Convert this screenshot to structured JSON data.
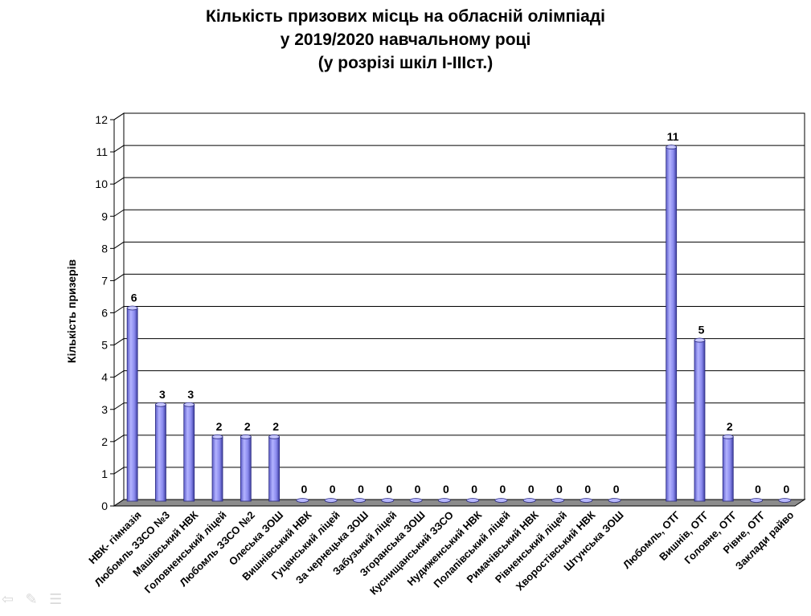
{
  "title_lines": [
    "Кількість призових місць на обласній олімпіаді",
    "у 2019/2020  навчальному році",
    "(у розрізі шкіл І-ІІІст.)"
  ],
  "colors": {
    "bar_front": "#9999ff",
    "bar_dark": "#2b2b80",
    "floor": "#8c8c8c",
    "gridline": "#000000"
  },
  "chart_data": {
    "type": "bar",
    "title": "Кількість призових місць на обласній олімпіаді у 2019/2020  навчальному році (у розрізі шкіл І-ІІІст.)",
    "xlabel": "",
    "ylabel": "Кількість призерів",
    "ylim": [
      0,
      12
    ],
    "yticks": [
      0,
      1,
      2,
      3,
      4,
      5,
      6,
      7,
      8,
      9,
      10,
      11,
      12
    ],
    "grid": true,
    "three_d": true,
    "categories": [
      "НВК- гімназія",
      "Любомль ЗЗСО №3",
      "Машівський НВК",
      "Головненський ліцей",
      "Любомль ЗЗСО №2",
      "Олеська ЗОШ",
      "Вишнівський  НВК",
      "Гуцанський ліцей",
      "За чернецька ЗОШ",
      "Забузький ліцей",
      "Згоранська ЗОШ",
      "Куснищанський ЗЗСО",
      "Нудиженський  НВК",
      "Полапівський ліцей",
      "Римачівський НВК",
      "Рівненський ліцей",
      "Хворостівський НВК",
      "Штунська ЗОШ",
      "",
      "Любомль, ОТГ",
      "Вишнів, ОТГ",
      "Головне, ОТГ",
      "Рівне, ОТГ",
      "Заклади райво"
    ],
    "values": [
      6,
      3,
      3,
      2,
      2,
      2,
      0,
      0,
      0,
      0,
      0,
      0,
      0,
      0,
      0,
      0,
      0,
      0,
      null,
      11,
      5,
      2,
      0,
      0
    ],
    "data_labels": [
      "6",
      "3",
      "3",
      "2",
      "2",
      "2",
      "0",
      "0",
      "0",
      "0",
      "0",
      "0",
      "0",
      "0",
      "0",
      "0",
      "0",
      "0",
      "",
      "11",
      "5",
      "2",
      "0",
      "0"
    ]
  }
}
